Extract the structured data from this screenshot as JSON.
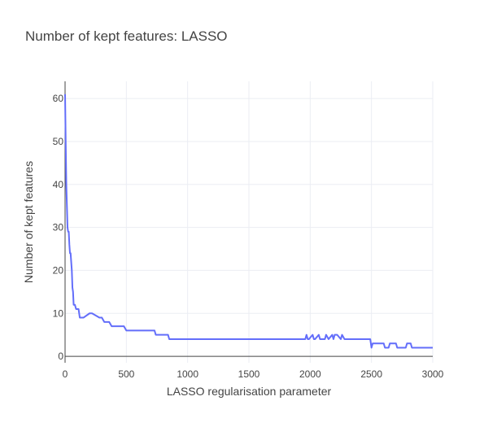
{
  "chart_data": {
    "type": "line",
    "title": "Number of kept features: LASSO",
    "xlabel": "LASSO regularisation parameter",
    "ylabel": "Number of kept features",
    "xlim": [
      0,
      3000
    ],
    "ylim": [
      -1.5,
      64
    ],
    "x_ticks": [
      0,
      500,
      1000,
      1500,
      2000,
      2500,
      3000
    ],
    "x_tick_labels": [
      "0",
      "500",
      "1000",
      "1500",
      "2000",
      "2500",
      "3000"
    ],
    "y_ticks": [
      0,
      10,
      20,
      30,
      40,
      50,
      60
    ],
    "y_tick_labels": [
      "0",
      "10",
      "20",
      "30",
      "40",
      "50",
      "60"
    ],
    "grid": true,
    "legend": "none",
    "color": "#636efa",
    "series": [
      {
        "x": [
          0,
          5,
          10,
          15,
          20,
          25,
          30,
          35,
          40,
          45,
          50,
          55,
          60,
          65,
          70,
          75,
          80,
          90,
          100,
          110,
          120,
          130,
          140,
          150,
          200,
          210,
          220,
          280,
          300,
          320,
          330,
          360,
          380,
          390,
          480,
          500,
          510,
          730,
          740,
          840,
          850,
          1960,
          1970,
          1980,
          1990,
          2020,
          2030,
          2040,
          2070,
          2080,
          2090,
          2120,
          2130,
          2150,
          2180,
          2190,
          2200,
          2210,
          2220,
          2250,
          2260,
          2280,
          2290,
          2300,
          2490,
          2500,
          2510,
          2520,
          2600,
          2610,
          2640,
          2650,
          2700,
          2710,
          2780,
          2790,
          2820,
          2830,
          3000
        ],
        "y": [
          61,
          50,
          40,
          35,
          30,
          29,
          29,
          26,
          24,
          24,
          22,
          20,
          16,
          15,
          12,
          12,
          12,
          11,
          11,
          11,
          9,
          9,
          9,
          9,
          10,
          10,
          10,
          9,
          9,
          8,
          8,
          8,
          7,
          7,
          7,
          6,
          6,
          6,
          5,
          5,
          4,
          4,
          5,
          4,
          4,
          5,
          4,
          4,
          5,
          4,
          4,
          4,
          5,
          4,
          5,
          4,
          5,
          5,
          5,
          4,
          5,
          4,
          4,
          4,
          4,
          2,
          3,
          3,
          3,
          2,
          2,
          3,
          3,
          2,
          2,
          3,
          3,
          2,
          2
        ]
      }
    ]
  }
}
